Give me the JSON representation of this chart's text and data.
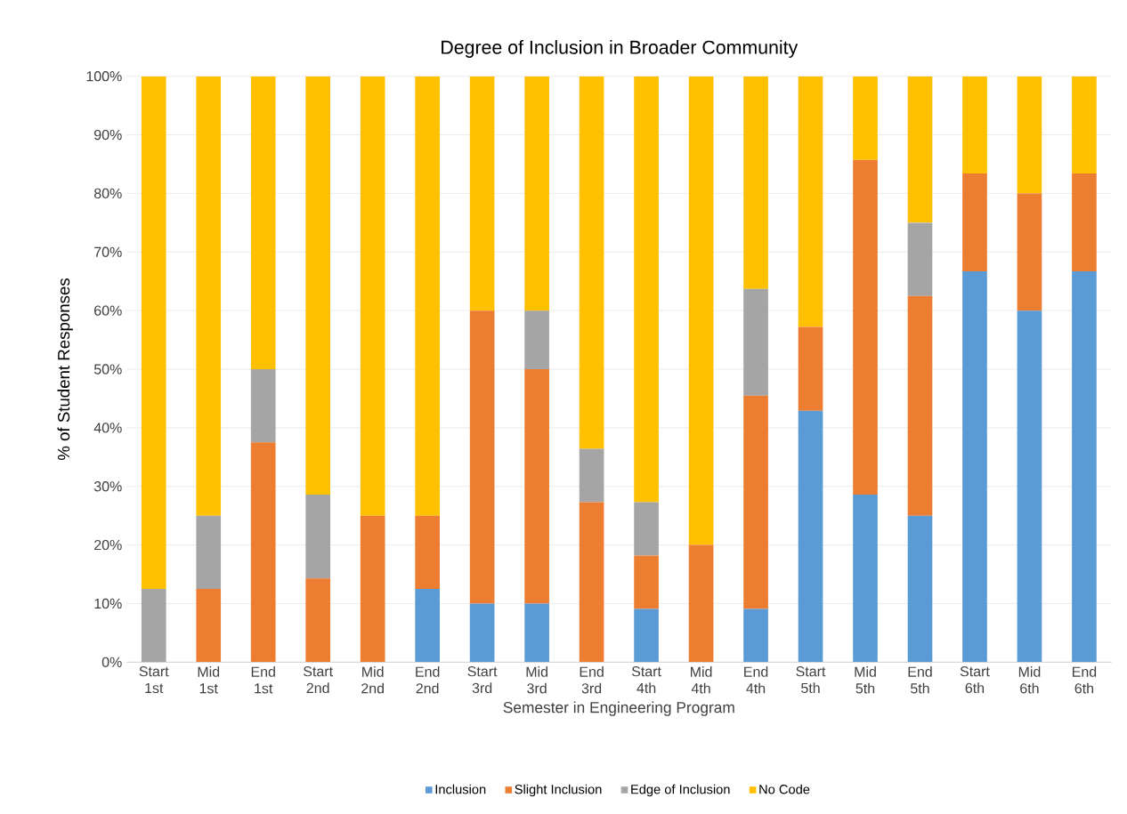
{
  "chart_data": {
    "type": "bar",
    "stacked": true,
    "title": "Degree of Inclusion in Broader Community",
    "xlabel": "Semester in Engineering Program",
    "ylabel": "% of Student Responses",
    "categories": [
      "Start 1st",
      "Mid 1st",
      "End 1st",
      "Start 2nd",
      "Mid 2nd",
      "End 2nd",
      "Start 3rd",
      "Mid 3rd",
      "End 3rd",
      "Start 4th",
      "Mid 4th",
      "End 4th",
      "Start 5th",
      "Mid 5th",
      "End 5th",
      "Start 6th",
      "Mid 6th",
      "End 6th"
    ],
    "series": [
      {
        "name": "Inclusion",
        "color": "#5b9bd5",
        "values": [
          0,
          0,
          0,
          0,
          0,
          12.5,
          10,
          10,
          0,
          9.1,
          0,
          9.1,
          42.9,
          28.6,
          25,
          66.7,
          60,
          66.7
        ]
      },
      {
        "name": "Slight Inclusion",
        "color": "#ed7d31",
        "values": [
          0,
          12.5,
          37.5,
          14.3,
          25,
          12.5,
          50,
          40,
          27.3,
          9.1,
          20,
          36.4,
          14.3,
          57.1,
          37.5,
          16.7,
          20,
          16.7
        ]
      },
      {
        "name": "Edge of Inclusion",
        "color": "#a5a5a5",
        "values": [
          12.5,
          12.5,
          12.5,
          14.3,
          0,
          0,
          0,
          10,
          9.1,
          9.1,
          0,
          18.2,
          0,
          0,
          12.5,
          0,
          0,
          0
        ]
      },
      {
        "name": "No Code",
        "color": "#ffc000",
        "values": [
          87.5,
          75,
          50,
          71.4,
          75,
          75,
          40,
          40,
          63.6,
          72.7,
          80,
          36.3,
          42.8,
          14.3,
          25,
          16.6,
          20,
          16.6
        ]
      }
    ],
    "ylim": [
      0,
      100
    ],
    "yticks": [
      {
        "value": 0,
        "label": "0%"
      },
      {
        "value": 10,
        "label": "10%"
      },
      {
        "value": 20,
        "label": "20%"
      },
      {
        "value": 30,
        "label": "30%"
      },
      {
        "value": 40,
        "label": "40%"
      },
      {
        "value": 50,
        "label": "50%"
      },
      {
        "value": 60,
        "label": "60%"
      },
      {
        "value": 70,
        "label": "70%"
      },
      {
        "value": 80,
        "label": "80%"
      },
      {
        "value": 90,
        "label": "90%"
      },
      {
        "value": 100,
        "label": "100%"
      }
    ],
    "grid": "y",
    "legend": "bottom"
  }
}
